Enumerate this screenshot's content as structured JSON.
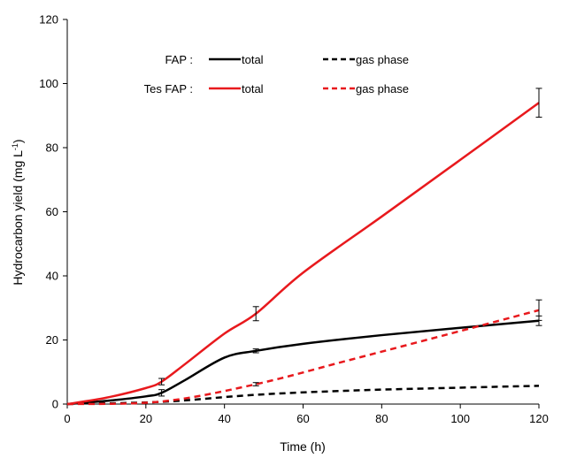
{
  "chart_data": {
    "type": "line",
    "xlabel": "Time (h)",
    "ylabel_main": "Hydrocarbon yield (mg L",
    "ylabel_sup": "-1",
    "ylabel_close": ")",
    "xlim": [
      0,
      120
    ],
    "ylim": [
      0,
      120
    ],
    "xticks": [
      0,
      20,
      40,
      60,
      80,
      100,
      120
    ],
    "yticks": [
      0,
      20,
      40,
      60,
      80,
      100,
      120
    ],
    "grid": false,
    "legend": {
      "placement": "top-left inside",
      "groups": [
        {
          "label": "FAP :",
          "entries": [
            "total",
            "gas phase"
          ]
        },
        {
          "label": "Tes FAP :",
          "entries": [
            "total",
            "gas phase"
          ]
        }
      ]
    },
    "series": [
      {
        "group": "FAP",
        "entry": "total",
        "color": "#000000",
        "dash": "solid",
        "x": [
          0,
          10,
          20,
          24,
          30,
          40,
          48,
          60,
          80,
          100,
          120
        ],
        "y": [
          0,
          1.0,
          2.4,
          3.5,
          7.5,
          14.5,
          16.6,
          18.8,
          21.5,
          23.8,
          26.0
        ],
        "error_bars": [
          {
            "x": 24,
            "y": 3.5,
            "err": 1.0
          },
          {
            "x": 48,
            "y": 16.6,
            "err": 0.6
          },
          {
            "x": 120,
            "y": 26.0,
            "err": 1.5
          }
        ]
      },
      {
        "group": "FAP",
        "entry": "gas phase",
        "color": "#000000",
        "dash": "dashed",
        "x": [
          0,
          24,
          48,
          72,
          96,
          120
        ],
        "y": [
          0,
          0.7,
          2.9,
          4.2,
          5.0,
          5.7
        ],
        "error_bars": []
      },
      {
        "group": "Tes FAP",
        "entry": "total",
        "color": "#e8191d",
        "dash": "solid",
        "x": [
          0,
          10,
          20,
          24,
          30,
          40,
          48,
          60,
          80,
          100,
          120
        ],
        "y": [
          0,
          2.0,
          5.0,
          7.0,
          12.5,
          22.0,
          28.2,
          41.0,
          58.5,
          76.2,
          94.0
        ],
        "error_bars": [
          {
            "x": 24,
            "y": 7.0,
            "err": 1.0
          },
          {
            "x": 48,
            "y": 28.2,
            "err": 2.2
          },
          {
            "x": 120,
            "y": 94.0,
            "err": 4.5
          }
        ]
      },
      {
        "group": "Tes FAP",
        "entry": "gas phase",
        "color": "#e8191d",
        "dash": "dashed",
        "x": [
          0,
          24,
          48,
          72,
          96,
          120
        ],
        "y": [
          0,
          0.8,
          6.2,
          13.8,
          21.5,
          29.3
        ],
        "error_bars": [
          {
            "x": 48,
            "y": 6.2,
            "err": 0.5
          },
          {
            "x": 120,
            "y": 29.3,
            "err": 3.2
          }
        ]
      }
    ]
  }
}
